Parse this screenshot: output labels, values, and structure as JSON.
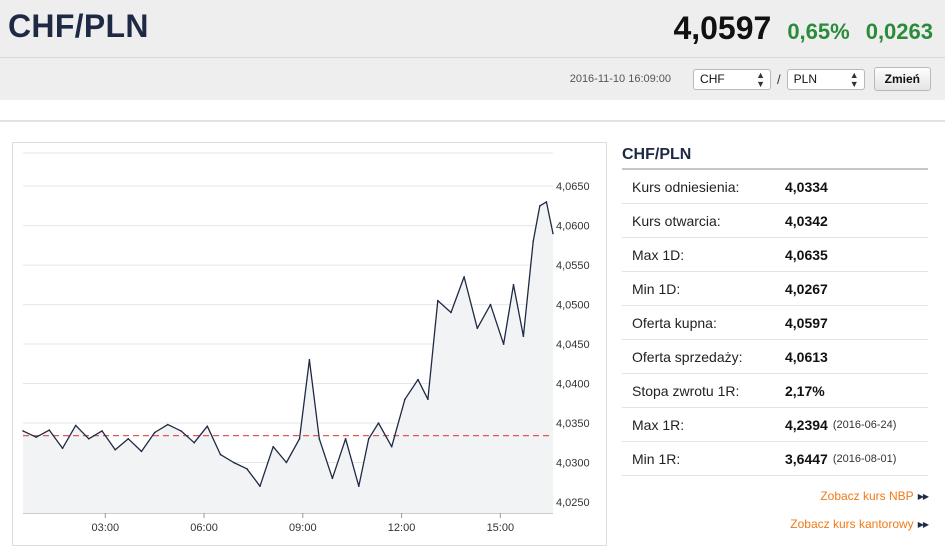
{
  "header": {
    "pair": "CHF/PLN",
    "price": "4,0597",
    "change_percent": "0,65%",
    "change_abs": "0,0263",
    "change_color": "#2a8b3a"
  },
  "controls": {
    "timestamp": "2016-11-10 16:09:00",
    "from_currency": "CHF",
    "separator": "/",
    "to_currency": "PLN",
    "submit_label": "Zmień"
  },
  "info": {
    "title": "CHF/PLN",
    "rows": [
      {
        "label": "Kurs odniesienia:",
        "value": "4,0334",
        "date": ""
      },
      {
        "label": "Kurs otwarcia:",
        "value": "4,0342",
        "date": ""
      },
      {
        "label": "Max 1D:",
        "value": "4,0635",
        "date": ""
      },
      {
        "label": "Min 1D:",
        "value": "4,0267",
        "date": ""
      },
      {
        "label": "Oferta kupna:",
        "value": "4,0597",
        "date": ""
      },
      {
        "label": "Oferta sprzedaży:",
        "value": "4,0613",
        "date": ""
      },
      {
        "label": "Stopa zwrotu 1R:",
        "value": "2,17%",
        "date": ""
      },
      {
        "label": "Max 1R:",
        "value": "4,2394",
        "date": "(2016-06-24)"
      },
      {
        "label": "Min 1R:",
        "value": "3,6447",
        "date": "(2016-08-01)"
      }
    ],
    "links": [
      {
        "label": "Zobacz kurs NBP",
        "icon": "double-chevron-right-icon"
      },
      {
        "label": "Zobacz kurs kantorowy",
        "icon": "double-chevron-right-icon"
      }
    ]
  },
  "chart_data": {
    "type": "line",
    "title": "",
    "xlabel": "",
    "ylabel": "",
    "x_ticks": [
      "03:00",
      "06:00",
      "09:00",
      "12:00",
      "15:00"
    ],
    "y_ticks": [
      "4,0250",
      "4,0300",
      "4,0350",
      "4,0400",
      "4,0450",
      "4,0500",
      "4,0550",
      "4,0600",
      "4,0650"
    ],
    "ylim": [
      4.0236,
      4.0692
    ],
    "xlim": [
      0.5,
      16.6
    ],
    "reference_level": 4.0334,
    "reference_color": "#e05a5a",
    "line_color": "#1e2a44",
    "grid": true,
    "series": [
      {
        "x": [
          0.5,
          0.9,
          1.3,
          1.7,
          2.1,
          2.5,
          2.9,
          3.3,
          3.7,
          4.1,
          4.5,
          4.9,
          5.3,
          5.7,
          6.1,
          6.5,
          6.9,
          7.3,
          7.7,
          8.1,
          8.5,
          8.9,
          9.2,
          9.5,
          9.9,
          10.3,
          10.7,
          11.0,
          11.3,
          11.7,
          12.1,
          12.5,
          12.8,
          13.1,
          13.5,
          13.9,
          14.3,
          14.7,
          15.1,
          15.4,
          15.7,
          16.0,
          16.2,
          16.4,
          16.6
        ],
        "values": [
          4.034,
          4.0332,
          4.0341,
          4.0318,
          4.0347,
          4.033,
          4.034,
          4.0316,
          4.033,
          4.0314,
          4.0338,
          4.0348,
          4.034,
          4.0325,
          4.0346,
          4.031,
          4.03,
          4.0292,
          4.027,
          4.032,
          4.03,
          4.033,
          4.043,
          4.033,
          4.028,
          4.033,
          4.027,
          4.033,
          4.035,
          4.032,
          4.038,
          4.0405,
          4.038,
          4.0505,
          4.049,
          4.0535,
          4.047,
          4.05,
          4.045,
          4.0525,
          4.046,
          4.058,
          4.0625,
          4.063,
          4.059
        ]
      }
    ]
  }
}
